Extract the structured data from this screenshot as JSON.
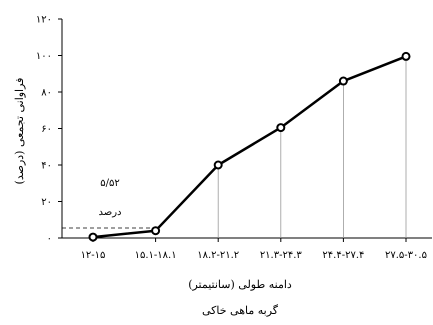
{
  "chart_data": {
    "type": "line",
    "categories": [
      "۱۲-۱۵",
      "۱۵.۱-۱۸.۱",
      "۱۸.۲-۲۱.۲",
      "۲۱.۳-۲۴.۳",
      "۲۴.۴-۲۷.۴",
      "۲۷.۵-۳۰.۵"
    ],
    "values": [
      0.5,
      4,
      40,
      60.5,
      86,
      99.5
    ],
    "ylabel": "فراوانی تجمعی (درصد)",
    "xlabel": "دامنه طولی (سانتیمتر)",
    "caption": "گربه ماهی خاکی",
    "ylim": [
      0,
      120
    ],
    "yticks": [
      0,
      20,
      40,
      60,
      80,
      100,
      120
    ],
    "ytick_labels": [
      "۰",
      "۲۰",
      "۴۰",
      "۶۰",
      "۸۰",
      "۱۰۰",
      "۱۲۰"
    ],
    "reference_value": 5.5,
    "annotation_value": "۵/۵۲",
    "annotation_unit": "درصد",
    "grid": false,
    "legend": "none"
  }
}
